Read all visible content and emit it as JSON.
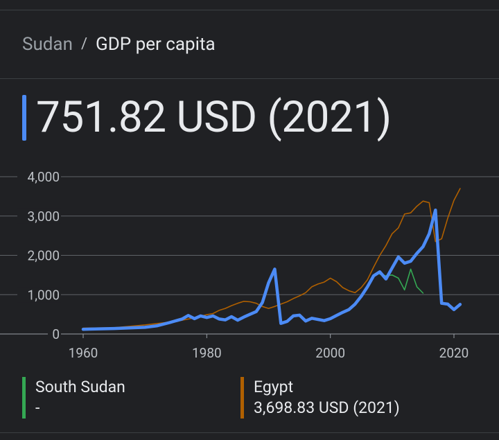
{
  "breadcrumb": {
    "parent": "Sudan",
    "separator": "/",
    "current": "GDP per capita"
  },
  "headline": {
    "value": "751.82 USD (2021)",
    "accent": "#4c8bf5"
  },
  "legend": [
    {
      "name": "South Sudan",
      "value": "-",
      "color": "#34a853"
    },
    {
      "name": "Egypt",
      "value": "3,698.83 USD (2021)",
      "color": "#b06000"
    }
  ],
  "chart_data": {
    "type": "line",
    "xlim": [
      1956,
      2024
    ],
    "ylim": [
      0,
      4000
    ],
    "y_ticks": [
      0,
      1000,
      2000,
      3000,
      4000
    ],
    "y_tick_labels": [
      "0",
      "1,000",
      "2,000",
      "3,000",
      "4,000"
    ],
    "x_ticks": [
      1960,
      1980,
      2000,
      2020
    ],
    "x_tick_labels": [
      "1960",
      "1980",
      "2000",
      "2020"
    ],
    "grid": true,
    "series": [
      {
        "name": "Sudan",
        "color": "#4c8bf5",
        "x": [
          1960,
          1965,
          1970,
          1972,
          1974,
          1976,
          1977,
          1978,
          1979,
          1980,
          1981,
          1982,
          1983,
          1984,
          1985,
          1986,
          1987,
          1988,
          1989,
          1990,
          1991,
          1992,
          1993,
          1994,
          1995,
          1996,
          1997,
          1998,
          1999,
          2000,
          2001,
          2002,
          2003,
          2004,
          2005,
          2006,
          2007,
          2008,
          2009,
          2010,
          2011,
          2012,
          2013,
          2014,
          2015,
          2016,
          2017,
          2018,
          2019,
          2020,
          2021
        ],
        "y": [
          120,
          140,
          170,
          210,
          290,
          380,
          470,
          390,
          460,
          420,
          460,
          380,
          360,
          440,
          350,
          430,
          500,
          570,
          800,
          1300,
          1650,
          270,
          320,
          460,
          480,
          330,
          400,
          370,
          340,
          390,
          470,
          550,
          620,
          760,
          960,
          1200,
          1480,
          1580,
          1400,
          1680,
          1960,
          1800,
          1850,
          2050,
          2220,
          2550,
          3150,
          780,
          760,
          620,
          751.82
        ]
      },
      {
        "name": "South Sudan",
        "color": "#34a853",
        "x": [
          2008,
          2009,
          2010,
          2011,
          2012,
          2013,
          2014,
          2015
        ],
        "y": [
          1520,
          1480,
          1500,
          1420,
          1120,
          1650,
          1200,
          1040
        ]
      },
      {
        "name": "Egypt",
        "color": "#b06000",
        "x": [
          1960,
          1965,
          1970,
          1975,
          1978,
          1980,
          1981,
          1982,
          1983,
          1984,
          1985,
          1986,
          1987,
          1988,
          1989,
          1990,
          1991,
          1992,
          1993,
          1994,
          1995,
          1996,
          1997,
          1998,
          1999,
          2000,
          2001,
          2002,
          2003,
          2004,
          2005,
          2006,
          2007,
          2008,
          2009,
          2010,
          2011,
          2012,
          2013,
          2014,
          2015,
          2016,
          2017,
          2018,
          2019,
          2020,
          2021
        ],
        "y": [
          150,
          160,
          230,
          320,
          410,
          490,
          520,
          600,
          650,
          720,
          780,
          830,
          820,
          780,
          700,
          650,
          700,
          760,
          820,
          900,
          970,
          1050,
          1200,
          1270,
          1320,
          1420,
          1330,
          1180,
          1100,
          1050,
          1180,
          1380,
          1700,
          2000,
          2250,
          2550,
          2700,
          3050,
          3080,
          3250,
          3380,
          3340,
          2350,
          2420,
          2950,
          3400,
          3698.83
        ]
      }
    ]
  }
}
